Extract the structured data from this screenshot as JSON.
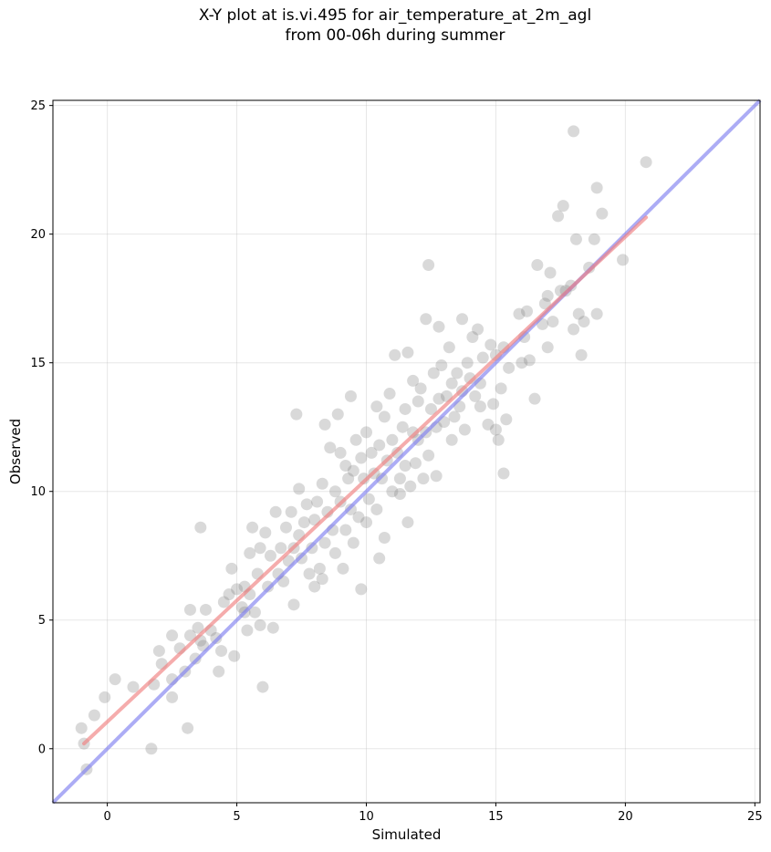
{
  "chart_data": {
    "type": "scatter",
    "title_line1": "X-Y plot at is.vi.495 for air_temperature_at_2m_agl",
    "title_line2": "from 00-06h during summer",
    "xlabel": "Simulated",
    "ylabel": "Observed",
    "xlim": [
      -2.1,
      25.2
    ],
    "ylim": [
      -2.1,
      25.2
    ],
    "xticks": [
      "0",
      "5",
      "10",
      "15",
      "20",
      "25"
    ],
    "yticks": [
      "0",
      "5",
      "10",
      "15",
      "20",
      "25"
    ],
    "grid": true,
    "colors": {
      "points": "#808080",
      "regression": "#f08080",
      "identity": "#8080f0"
    },
    "regression_line": {
      "x": [
        -0.9,
        20.8
      ],
      "y": [
        0.2,
        20.65
      ]
    },
    "identity_line": {
      "x": [
        -2.1,
        25.2
      ],
      "y": [
        -2.1,
        25.2
      ]
    },
    "points": [
      [
        -1.0,
        0.8
      ],
      [
        -0.9,
        0.2
      ],
      [
        -0.8,
        -0.8
      ],
      [
        -0.5,
        1.3
      ],
      [
        -0.1,
        2.0
      ],
      [
        0.3,
        2.7
      ],
      [
        1.0,
        2.4
      ],
      [
        1.7,
        0.0
      ],
      [
        1.8,
        2.5
      ],
      [
        2.0,
        3.8
      ],
      [
        2.1,
        3.3
      ],
      [
        2.5,
        4.4
      ],
      [
        2.5,
        2.7
      ],
      [
        2.5,
        2.0
      ],
      [
        2.8,
        3.9
      ],
      [
        3.0,
        3.0
      ],
      [
        3.1,
        0.8
      ],
      [
        3.2,
        4.4
      ],
      [
        3.2,
        5.4
      ],
      [
        3.4,
        3.5
      ],
      [
        3.5,
        4.7
      ],
      [
        3.6,
        4.2
      ],
      [
        3.6,
        8.6
      ],
      [
        3.7,
        4.0
      ],
      [
        3.8,
        5.4
      ],
      [
        4.0,
        4.6
      ],
      [
        4.2,
        4.3
      ],
      [
        4.3,
        3.0
      ],
      [
        4.4,
        3.8
      ],
      [
        4.5,
        5.7
      ],
      [
        4.7,
        6.0
      ],
      [
        4.8,
        7.0
      ],
      [
        4.9,
        3.6
      ],
      [
        5.0,
        6.2
      ],
      [
        5.2,
        5.5
      ],
      [
        5.3,
        5.3
      ],
      [
        5.3,
        6.3
      ],
      [
        5.4,
        4.6
      ],
      [
        5.5,
        6.0
      ],
      [
        5.5,
        7.6
      ],
      [
        5.6,
        8.6
      ],
      [
        5.7,
        5.3
      ],
      [
        5.8,
        6.8
      ],
      [
        5.9,
        4.8
      ],
      [
        5.9,
        7.8
      ],
      [
        6.0,
        2.4
      ],
      [
        6.1,
        8.4
      ],
      [
        6.2,
        6.3
      ],
      [
        6.3,
        7.5
      ],
      [
        6.4,
        4.7
      ],
      [
        6.5,
        9.2
      ],
      [
        6.6,
        6.8
      ],
      [
        6.7,
        7.8
      ],
      [
        6.8,
        6.5
      ],
      [
        6.9,
        8.6
      ],
      [
        7.0,
        7.3
      ],
      [
        7.1,
        9.2
      ],
      [
        7.2,
        5.6
      ],
      [
        7.2,
        7.8
      ],
      [
        7.3,
        13.0
      ],
      [
        7.4,
        8.3
      ],
      [
        7.4,
        10.1
      ],
      [
        7.5,
        7.4
      ],
      [
        7.6,
        8.8
      ],
      [
        7.7,
        9.5
      ],
      [
        7.8,
        6.8
      ],
      [
        7.9,
        7.8
      ],
      [
        8.0,
        8.9
      ],
      [
        8.0,
        6.3
      ],
      [
        8.1,
        9.6
      ],
      [
        8.2,
        7.0
      ],
      [
        8.3,
        10.3
      ],
      [
        8.3,
        6.6
      ],
      [
        8.4,
        8.0
      ],
      [
        8.4,
        12.6
      ],
      [
        8.5,
        9.2
      ],
      [
        8.6,
        11.7
      ],
      [
        8.7,
        8.5
      ],
      [
        8.8,
        7.6
      ],
      [
        8.8,
        10.0
      ],
      [
        8.9,
        13.0
      ],
      [
        9.0,
        9.6
      ],
      [
        9.0,
        11.5
      ],
      [
        9.1,
        7.0
      ],
      [
        9.2,
        8.5
      ],
      [
        9.2,
        11.0
      ],
      [
        9.3,
        10.5
      ],
      [
        9.4,
        13.7
      ],
      [
        9.4,
        9.3
      ],
      [
        9.5,
        8.0
      ],
      [
        9.5,
        10.8
      ],
      [
        9.6,
        12.0
      ],
      [
        9.7,
        9.0
      ],
      [
        9.8,
        6.2
      ],
      [
        9.8,
        11.3
      ],
      [
        9.9,
        10.5
      ],
      [
        10.0,
        12.3
      ],
      [
        10.0,
        8.8
      ],
      [
        10.1,
        9.7
      ],
      [
        10.2,
        11.5
      ],
      [
        10.3,
        10.7
      ],
      [
        10.4,
        13.3
      ],
      [
        10.4,
        9.3
      ],
      [
        10.5,
        11.8
      ],
      [
        10.5,
        7.4
      ],
      [
        10.6,
        10.5
      ],
      [
        10.7,
        12.9
      ],
      [
        10.7,
        8.2
      ],
      [
        10.8,
        11.2
      ],
      [
        10.9,
        13.8
      ],
      [
        11.0,
        10.0
      ],
      [
        11.0,
        12.0
      ],
      [
        11.1,
        15.3
      ],
      [
        11.2,
        11.5
      ],
      [
        11.3,
        10.5
      ],
      [
        11.3,
        9.9
      ],
      [
        11.4,
        12.5
      ],
      [
        11.5,
        13.2
      ],
      [
        11.5,
        11.0
      ],
      [
        11.6,
        15.4
      ],
      [
        11.6,
        8.8
      ],
      [
        11.7,
        10.2
      ],
      [
        11.8,
        12.3
      ],
      [
        11.8,
        14.3
      ],
      [
        11.9,
        11.1
      ],
      [
        12.0,
        13.5
      ],
      [
        12.0,
        12.0
      ],
      [
        12.1,
        14.0
      ],
      [
        12.2,
        10.5
      ],
      [
        12.3,
        16.7
      ],
      [
        12.3,
        12.3
      ],
      [
        12.4,
        11.4
      ],
      [
        12.4,
        18.8
      ],
      [
        12.5,
        13.2
      ],
      [
        12.6,
        14.6
      ],
      [
        12.7,
        10.6
      ],
      [
        12.7,
        12.5
      ],
      [
        12.8,
        16.4
      ],
      [
        12.8,
        13.6
      ],
      [
        12.9,
        14.9
      ],
      [
        13.0,
        12.7
      ],
      [
        13.1,
        13.7
      ],
      [
        13.2,
        15.6
      ],
      [
        13.3,
        12.0
      ],
      [
        13.3,
        14.2
      ],
      [
        13.4,
        12.9
      ],
      [
        13.5,
        14.6
      ],
      [
        13.6,
        13.3
      ],
      [
        13.7,
        16.7
      ],
      [
        13.7,
        13.9
      ],
      [
        13.8,
        12.4
      ],
      [
        13.9,
        15.0
      ],
      [
        14.0,
        14.4
      ],
      [
        14.1,
        16.0
      ],
      [
        14.2,
        13.7
      ],
      [
        14.3,
        16.3
      ],
      [
        14.4,
        14.2
      ],
      [
        14.4,
        13.3
      ],
      [
        14.5,
        15.2
      ],
      [
        14.7,
        12.6
      ],
      [
        14.8,
        15.7
      ],
      [
        14.9,
        13.4
      ],
      [
        15.0,
        12.4
      ],
      [
        15.0,
        15.3
      ],
      [
        15.1,
        12.0
      ],
      [
        15.2,
        14.0
      ],
      [
        15.3,
        15.6
      ],
      [
        15.3,
        10.7
      ],
      [
        15.4,
        12.8
      ],
      [
        15.5,
        14.8
      ],
      [
        15.9,
        16.9
      ],
      [
        16.0,
        15.0
      ],
      [
        16.1,
        16.0
      ],
      [
        16.2,
        17.0
      ],
      [
        16.3,
        15.1
      ],
      [
        16.5,
        13.6
      ],
      [
        16.6,
        18.8
      ],
      [
        16.8,
        16.5
      ],
      [
        16.9,
        17.3
      ],
      [
        17.0,
        15.6
      ],
      [
        17.0,
        17.6
      ],
      [
        17.1,
        18.5
      ],
      [
        17.2,
        16.6
      ],
      [
        17.4,
        20.7
      ],
      [
        17.5,
        17.8
      ],
      [
        17.6,
        21.1
      ],
      [
        17.7,
        17.8
      ],
      [
        17.9,
        18.0
      ],
      [
        18.0,
        16.3
      ],
      [
        18.0,
        24.0
      ],
      [
        18.1,
        19.8
      ],
      [
        18.2,
        16.9
      ],
      [
        18.3,
        15.3
      ],
      [
        18.4,
        16.6
      ],
      [
        18.6,
        18.7
      ],
      [
        18.8,
        19.8
      ],
      [
        18.9,
        21.8
      ],
      [
        18.9,
        16.9
      ],
      [
        19.1,
        20.8
      ],
      [
        19.9,
        19.0
      ],
      [
        20.8,
        22.8
      ]
    ]
  }
}
